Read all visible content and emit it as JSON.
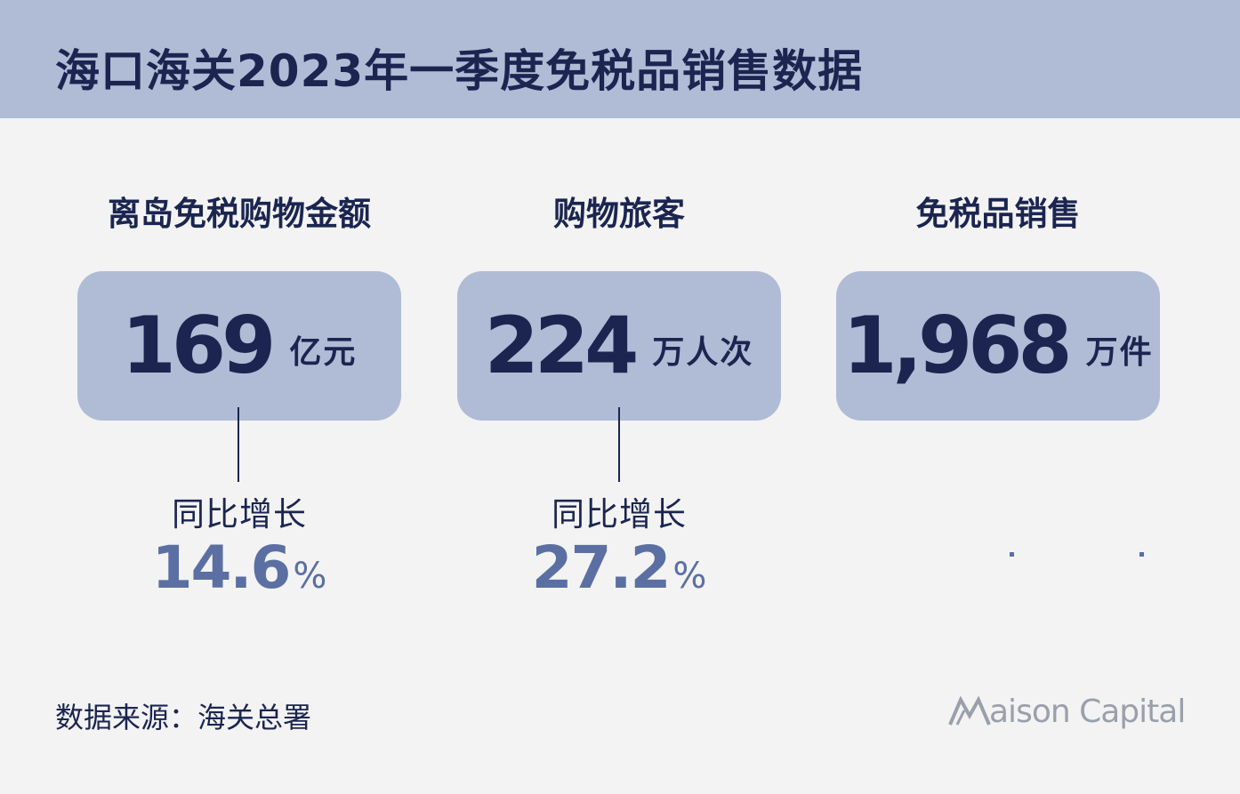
{
  "header": {
    "title": "海口海关2023年一季度免税品销售数据"
  },
  "stats": [
    {
      "label": "离岛免税购物金额",
      "value": "169",
      "unit": "亿元",
      "growth_label": "同比增长",
      "growth_value": "14.6",
      "growth_unit": "%"
    },
    {
      "label": "购物旅客",
      "value": "224",
      "unit": "万人次",
      "growth_label": "同比增长",
      "growth_value": "27.2",
      "growth_unit": "%"
    },
    {
      "label": "免税品销售",
      "value": "1,968",
      "unit": "万件"
    }
  ],
  "footer": {
    "source": "数据来源：海关总署",
    "brand": "aison Capital",
    "brand_icon": "maison-m-logo-icon"
  },
  "colors": {
    "header_bg": "#b0bcd6",
    "card_bg": "#b0bcd6",
    "dark_navy": "#1b2550",
    "accent_blue": "#5b6fa3",
    "page_bg": "#f3f3f4",
    "logo_gray": "#9aa0aa"
  }
}
